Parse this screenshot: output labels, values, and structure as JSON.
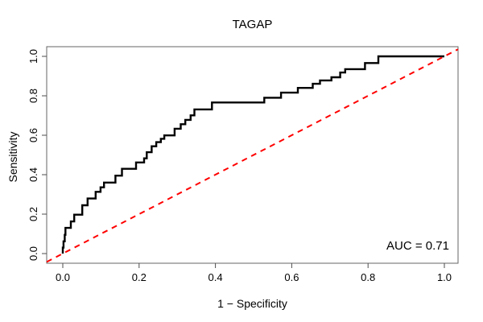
{
  "chart_data": {
    "type": "line",
    "title": "TAGAP",
    "xlabel": "1 − Specificity",
    "ylabel": "Sensitivity",
    "xlim": [
      0.0,
      1.0
    ],
    "ylim": [
      0.0,
      1.0
    ],
    "grid": false,
    "legend_position": "none",
    "xticks": [
      0.0,
      0.2,
      0.4,
      0.6,
      0.8,
      1.0
    ],
    "yticks": [
      0.0,
      0.2,
      0.4,
      0.6,
      0.8,
      1.0
    ],
    "xtick_labels": [
      "0.0",
      "0.2",
      "0.4",
      "0.6",
      "0.8",
      "1.0"
    ],
    "ytick_labels": [
      "0.0",
      "0.2",
      "0.4",
      "0.6",
      "0.8",
      "1.0"
    ],
    "annotations": [
      {
        "text": "AUC = 0.71",
        "x": 0.97,
        "y": 0.05,
        "align": "right"
      }
    ],
    "series": [
      {
        "name": "ROC curve",
        "style": "solid-step",
        "color": "#000000",
        "width": 2.4,
        "points": [
          [
            0.0,
            0.0
          ],
          [
            0.0,
            0.03
          ],
          [
            0.002,
            0.03
          ],
          [
            0.002,
            0.062
          ],
          [
            0.005,
            0.062
          ],
          [
            0.005,
            0.095
          ],
          [
            0.007,
            0.095
          ],
          [
            0.007,
            0.13
          ],
          [
            0.021,
            0.13
          ],
          [
            0.021,
            0.163
          ],
          [
            0.03,
            0.163
          ],
          [
            0.03,
            0.197
          ],
          [
            0.051,
            0.197
          ],
          [
            0.051,
            0.245
          ],
          [
            0.065,
            0.245
          ],
          [
            0.065,
            0.279
          ],
          [
            0.086,
            0.279
          ],
          [
            0.086,
            0.313
          ],
          [
            0.099,
            0.313
          ],
          [
            0.099,
            0.336
          ],
          [
            0.108,
            0.336
          ],
          [
            0.108,
            0.36
          ],
          [
            0.138,
            0.36
          ],
          [
            0.138,
            0.395
          ],
          [
            0.155,
            0.395
          ],
          [
            0.155,
            0.43
          ],
          [
            0.192,
            0.43
          ],
          [
            0.192,
            0.462
          ],
          [
            0.213,
            0.462
          ],
          [
            0.213,
            0.483
          ],
          [
            0.22,
            0.483
          ],
          [
            0.22,
            0.514
          ],
          [
            0.233,
            0.514
          ],
          [
            0.233,
            0.544
          ],
          [
            0.245,
            0.544
          ],
          [
            0.245,
            0.565
          ],
          [
            0.257,
            0.565
          ],
          [
            0.257,
            0.582
          ],
          [
            0.266,
            0.582
          ],
          [
            0.266,
            0.599
          ],
          [
            0.293,
            0.599
          ],
          [
            0.293,
            0.633
          ],
          [
            0.309,
            0.633
          ],
          [
            0.309,
            0.656
          ],
          [
            0.321,
            0.656
          ],
          [
            0.321,
            0.678
          ],
          [
            0.335,
            0.678
          ],
          [
            0.335,
            0.701
          ],
          [
            0.345,
            0.701
          ],
          [
            0.345,
            0.731
          ],
          [
            0.391,
            0.731
          ],
          [
            0.391,
            0.766
          ],
          [
            0.528,
            0.766
          ],
          [
            0.528,
            0.79
          ],
          [
            0.572,
            0.79
          ],
          [
            0.572,
            0.816
          ],
          [
            0.616,
            0.816
          ],
          [
            0.616,
            0.84
          ],
          [
            0.655,
            0.84
          ],
          [
            0.655,
            0.861
          ],
          [
            0.674,
            0.861
          ],
          [
            0.674,
            0.878
          ],
          [
            0.704,
            0.878
          ],
          [
            0.704,
            0.894
          ],
          [
            0.727,
            0.894
          ],
          [
            0.727,
            0.918
          ],
          [
            0.74,
            0.918
          ],
          [
            0.74,
            0.935
          ],
          [
            0.792,
            0.935
          ],
          [
            0.792,
            0.966
          ],
          [
            0.827,
            0.966
          ],
          [
            0.827,
            1.0
          ],
          [
            1.0,
            1.0
          ]
        ]
      },
      {
        "name": "Chance diagonal",
        "style": "dashed",
        "color": "#ff0000",
        "width": 2,
        "extend_to_box": true,
        "points": [
          [
            0.0,
            0.0
          ],
          [
            1.0,
            1.0
          ]
        ]
      }
    ],
    "auc_value": "0.71"
  },
  "colors": {
    "box": "#666666",
    "tick": "#4d4d4d",
    "text": "#000000",
    "background": "#ffffff",
    "curve": "#000000",
    "diagonal": "#ff0000"
  }
}
